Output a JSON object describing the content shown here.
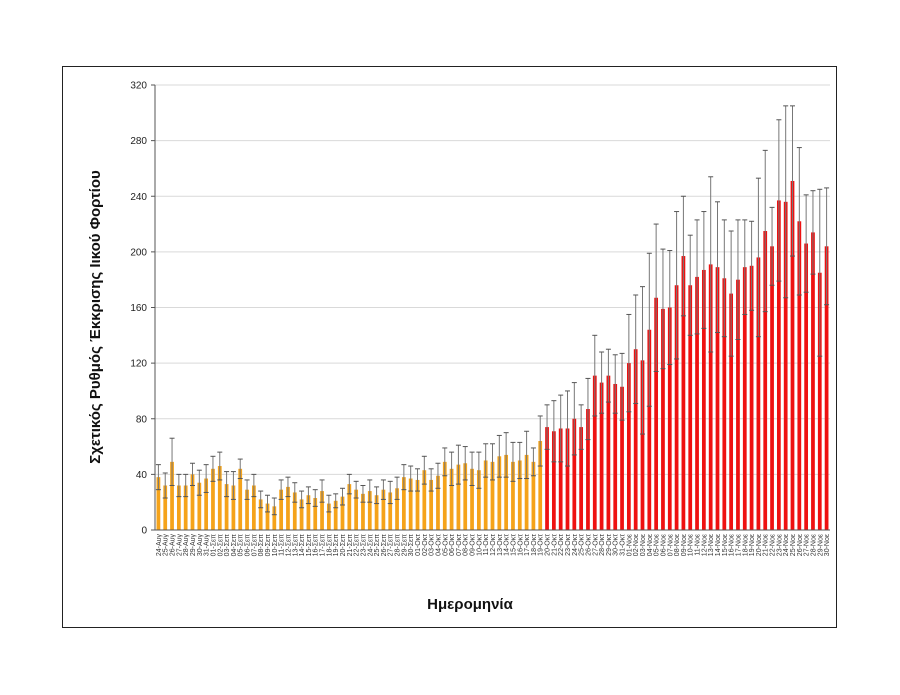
{
  "chart_data": {
    "type": "bar",
    "title": "",
    "xlabel": "Ημερομηνία",
    "ylabel": "Σχετικός Ρυθμός Έκκρισης Ιικού Φορτίου",
    "ylim": [
      0,
      320
    ],
    "yticks": [
      0,
      40,
      80,
      120,
      160,
      200,
      240,
      280,
      320
    ],
    "grid": true,
    "error_bars": true,
    "colors": {
      "period1": "#f5a31a",
      "period2": "#ee1111",
      "error_bar": "#777777",
      "grid": "#d9d9d9"
    },
    "months": [
      {
        "name": "Αυγ",
        "start_day": 24,
        "end_day": 31
      },
      {
        "name": "Σεπ",
        "start_day": 1,
        "end_day": 30
      },
      {
        "name": "Οκτ",
        "start_day": 1,
        "end_day": 31
      },
      {
        "name": "Νοε",
        "start_day": 1,
        "end_day": 30
      }
    ],
    "color_change_date": "20-Οκτ",
    "values": [
      38,
      32,
      49,
      32,
      32,
      40,
      34,
      37,
      44,
      46,
      33,
      32,
      44,
      29,
      32,
      22,
      19,
      17,
      29,
      31,
      27,
      22,
      25,
      23,
      28,
      19,
      21,
      24,
      33,
      29,
      26,
      28,
      25,
      29,
      27,
      30,
      38,
      37,
      36,
      43,
      36,
      39,
      49,
      44,
      47,
      48,
      44,
      43,
      50,
      49,
      53,
      54,
      49,
      50,
      54,
      49,
      64,
      74,
      71,
      73,
      73,
      80,
      74,
      87,
      111,
      106,
      111,
      105,
      103,
      120,
      130,
      122,
      144,
      167,
      159,
      160,
      176,
      197,
      176,
      182,
      187,
      191,
      189,
      181,
      170,
      180,
      189,
      190,
      196,
      215,
      204,
      237,
      236,
      251,
      222,
      206,
      214,
      185,
      204
    ],
    "errors": [
      9,
      9,
      17,
      8,
      8,
      8,
      9,
      10,
      9,
      10,
      9,
      10,
      7,
      7,
      8,
      6,
      6,
      6,
      7,
      7,
      7,
      6,
      6,
      6,
      8,
      6,
      5,
      6,
      7,
      6,
      6,
      8,
      6,
      7,
      8,
      8,
      9,
      9,
      8,
      10,
      8,
      9,
      10,
      12,
      14,
      12,
      12,
      13,
      12,
      13,
      15,
      16,
      14,
      13,
      17,
      10,
      18,
      16,
      22,
      24,
      27,
      26,
      16,
      22,
      29,
      22,
      19,
      21,
      24,
      35,
      39,
      53,
      55,
      53,
      43,
      41,
      53,
      43,
      36,
      41,
      42,
      63,
      47,
      42,
      45,
      43,
      34,
      32,
      57,
      58,
      28,
      58,
      69,
      54,
      53,
      35,
      30,
      60,
      42
    ]
  }
}
